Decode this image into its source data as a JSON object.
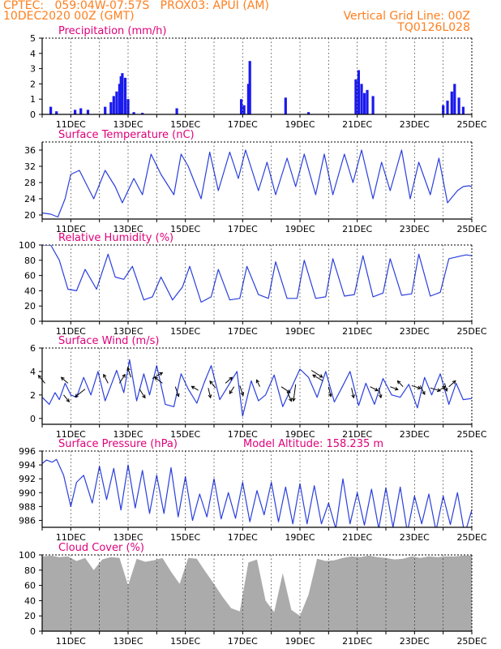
{
  "header": {
    "line1": "CPTEC:   059:04W-07:57S   PROX03: APUI (AM)",
    "line2": "10DEC2020 00Z (GMT)",
    "grid_note": "Vertical Grid Line: 00Z",
    "code": "TQ0126L028"
  },
  "x_tick_labels": [
    "11DEC",
    "13DEC",
    "15DEC",
    "17DEC",
    "19DEC",
    "21DEC",
    "23DEC",
    "25DEC"
  ],
  "colors": {
    "header": "#ff7f1e",
    "title": "#e0007a",
    "line": "#2a3fdd",
    "bar": "#1a1aee",
    "cloud": "#ababab",
    "grid": "#000000"
  },
  "chart_data": [
    {
      "type": "bar",
      "id": "precip",
      "title": "Precipitation (mm/h)",
      "ylim": [
        0,
        5
      ],
      "yticks": [
        0,
        1,
        2,
        3,
        4,
        5
      ],
      "x": [
        10.3,
        10.5,
        11.15,
        11.35,
        11.6,
        12.2,
        12.4,
        12.5,
        12.6,
        12.7,
        12.75,
        12.8,
        12.9,
        13.0,
        13.2,
        13.5,
        14.7,
        16.95,
        17.05,
        17.2,
        17.25,
        18.5,
        19.3,
        20.95,
        21.05,
        21.15,
        21.25,
        21.35,
        21.55,
        24.0,
        24.15,
        24.3,
        24.4,
        24.55,
        24.7
      ],
      "values": [
        0.5,
        0.2,
        0.3,
        0.4,
        0.3,
        0.5,
        0.8,
        1.2,
        1.5,
        2.0,
        2.5,
        2.7,
        2.4,
        1.0,
        0.15,
        0.1,
        0.4,
        1.0,
        0.6,
        2.0,
        3.5,
        1.1,
        0.15,
        2.3,
        2.9,
        2.0,
        1.4,
        1.6,
        1.2,
        0.6,
        0.9,
        1.5,
        2.0,
        1.1,
        0.5
      ]
    },
    {
      "type": "line",
      "id": "temp",
      "title": "Surface Temperature (nC)",
      "ylim": [
        19,
        38
      ],
      "yticks": [
        20,
        24,
        28,
        32,
        36
      ],
      "x": [
        10.0,
        10.3,
        10.55,
        10.8,
        11.0,
        11.3,
        11.8,
        12.2,
        12.55,
        12.8,
        13.2,
        13.5,
        13.8,
        14.15,
        14.6,
        14.85,
        15.1,
        15.55,
        15.85,
        16.15,
        16.55,
        16.85,
        17.1,
        17.55,
        17.85,
        18.15,
        18.55,
        18.85,
        19.15,
        19.55,
        19.85,
        20.15,
        20.55,
        20.85,
        21.15,
        21.55,
        21.85,
        22.15,
        22.55,
        22.85,
        23.15,
        23.55,
        23.85,
        24.15,
        24.5,
        24.7,
        24.9,
        25.0
      ],
      "y": [
        20.5,
        20.2,
        19.5,
        24,
        30,
        31,
        24,
        31,
        27,
        23,
        29,
        25,
        35,
        30,
        25,
        35,
        32,
        24,
        35.5,
        26,
        35.5,
        29,
        36,
        26,
        33,
        25,
        34,
        27,
        35,
        25,
        35,
        25,
        35,
        28,
        36,
        24,
        33,
        26,
        36,
        24,
        33,
        25,
        34,
        23,
        26,
        27,
        27.2,
        27
      ]
    },
    {
      "type": "line",
      "id": "rh",
      "title": "Relative Humidity (%)",
      "ylim": [
        0,
        100
      ],
      "yticks": [
        0,
        20,
        40,
        60,
        80,
        100
      ],
      "x": [
        10.0,
        10.3,
        10.6,
        10.9,
        11.2,
        11.5,
        11.9,
        12.3,
        12.55,
        12.85,
        13.15,
        13.55,
        13.85,
        14.15,
        14.55,
        14.9,
        15.15,
        15.55,
        15.9,
        16.15,
        16.55,
        16.9,
        17.15,
        17.55,
        17.9,
        18.15,
        18.55,
        18.9,
        19.15,
        19.55,
        19.9,
        20.15,
        20.55,
        20.9,
        21.2,
        21.55,
        21.9,
        22.15,
        22.55,
        22.9,
        23.15,
        23.55,
        23.9,
        24.2,
        24.55,
        24.8,
        25.0
      ],
      "y": [
        100,
        100,
        80,
        42,
        40,
        68,
        42,
        88,
        58,
        55,
        72,
        28,
        32,
        58,
        28,
        45,
        72,
        25,
        32,
        68,
        28,
        30,
        72,
        35,
        30,
        78,
        30,
        30,
        80,
        30,
        32,
        82,
        33,
        35,
        86,
        32,
        37,
        82,
        34,
        36,
        88,
        33,
        38,
        82,
        85,
        87,
        86
      ]
    },
    {
      "type": "line",
      "id": "wind",
      "title": "Surface Wind (m/s)",
      "ylim": [
        -0.5,
        6
      ],
      "yticks": [
        0,
        2,
        4,
        6
      ],
      "x": [
        10.0,
        10.25,
        10.45,
        10.6,
        10.8,
        11.0,
        11.2,
        11.45,
        11.7,
        11.95,
        12.2,
        12.4,
        12.6,
        12.85,
        13.05,
        13.3,
        13.55,
        13.75,
        14.0,
        14.3,
        14.6,
        14.85,
        15.1,
        15.4,
        15.65,
        15.9,
        16.2,
        16.5,
        16.8,
        17.0,
        17.3,
        17.55,
        17.8,
        18.1,
        18.4,
        18.7,
        19.0,
        19.3,
        19.6,
        19.9,
        20.2,
        20.5,
        20.75,
        21.05,
        21.3,
        21.6,
        21.9,
        22.2,
        22.5,
        22.8,
        23.1,
        23.35,
        23.6,
        23.9,
        24.2,
        24.45,
        24.7,
        25.0
      ],
      "y": [
        1.8,
        1.2,
        2.2,
        1.6,
        3.0,
        2.0,
        1.8,
        3.5,
        2.0,
        4.0,
        1.5,
        2.8,
        4.1,
        2.2,
        5.0,
        1.5,
        3.8,
        2.0,
        4.5,
        1.2,
        1.0,
        3.8,
        2.5,
        1.3,
        3.0,
        4.5,
        1.6,
        2.8,
        4.0,
        0.2,
        3.2,
        1.5,
        2.0,
        3.7,
        1.0,
        2.6,
        4.2,
        3.5,
        1.8,
        4.0,
        1.4,
        2.8,
        4.0,
        1.1,
        3.0,
        1.2,
        3.4,
        2.0,
        1.8,
        2.9,
        0.9,
        3.5,
        2.0,
        3.8,
        1.2,
        3.0,
        1.6,
        1.7
      ],
      "arrows": [
        [
          10.1,
          3.0,
          -0.3,
          0.4
        ],
        [
          10.75,
          2.0,
          0.25,
          -0.35
        ],
        [
          10.9,
          3.0,
          -0.3,
          0.3
        ],
        [
          11.5,
          2.5,
          -0.45,
          -0.4
        ],
        [
          12.3,
          3.0,
          -0.2,
          0.45
        ],
        [
          12.7,
          3.0,
          0.25,
          0.45
        ],
        [
          13.1,
          3.5,
          -0.15,
          0.5
        ],
        [
          13.4,
          2.5,
          0.25,
          -0.45
        ],
        [
          13.85,
          3.4,
          0.45,
          0.3
        ],
        [
          14.2,
          3.0,
          -0.35,
          0.3
        ],
        [
          14.65,
          2.7,
          0.15,
          -0.5
        ],
        [
          15.45,
          2.4,
          -0.3,
          0.2
        ],
        [
          15.8,
          2.6,
          0.1,
          -0.5
        ],
        [
          16.05,
          2.6,
          -0.25,
          0.35
        ],
        [
          16.4,
          3.0,
          0.3,
          0.3
        ],
        [
          16.7,
          2.7,
          -0.2,
          -0.35
        ],
        [
          16.9,
          2.8,
          0.15,
          -0.5
        ],
        [
          17.6,
          2.7,
          -0.15,
          0.35
        ],
        [
          18.35,
          2.7,
          0.4,
          -0.3
        ],
        [
          18.55,
          2.3,
          0.2,
          -0.5
        ],
        [
          18.85,
          2.9,
          -0.1,
          -0.85
        ],
        [
          19.4,
          4.1,
          0.5,
          -0.35
        ],
        [
          19.8,
          3.2,
          -0.45,
          0.3
        ],
        [
          20.0,
          2.7,
          0.1,
          -0.5
        ],
        [
          20.8,
          2.6,
          0.1,
          -0.5
        ],
        [
          21.45,
          2.7,
          0.35,
          -0.2
        ],
        [
          21.75,
          2.6,
          0.1,
          -0.5
        ],
        [
          22.15,
          2.7,
          0.35,
          -0.15
        ],
        [
          22.6,
          2.7,
          -0.25,
          0.3
        ],
        [
          22.9,
          2.8,
          0.4,
          -0.15
        ],
        [
          23.2,
          2.8,
          0.2,
          -0.45
        ],
        [
          23.55,
          2.6,
          0.45,
          -0.15
        ],
        [
          23.8,
          2.3,
          0.35,
          0.25
        ],
        [
          24.2,
          2.7,
          0.3,
          0.3
        ],
        [
          24.05,
          3.0,
          0.1,
          -0.4
        ]
      ]
    },
    {
      "type": "line",
      "id": "pres",
      "title": "Surface Pressure (hPa)",
      "annotation": "Model Altitude: 158.235 m",
      "ylim": [
        985,
        996
      ],
      "yticks": [
        986,
        988,
        990,
        992,
        994,
        996
      ],
      "x": [
        10.0,
        10.15,
        10.35,
        10.5,
        10.75,
        11.0,
        11.2,
        11.45,
        11.75,
        12.0,
        12.25,
        12.5,
        12.75,
        13.0,
        13.25,
        13.5,
        13.75,
        14.0,
        14.25,
        14.5,
        14.75,
        15.0,
        15.25,
        15.5,
        15.75,
        16.0,
        16.25,
        16.5,
        16.75,
        17.0,
        17.25,
        17.5,
        17.75,
        18.0,
        18.25,
        18.5,
        18.75,
        19.0,
        19.25,
        19.5,
        19.75,
        20.0,
        20.25,
        20.5,
        20.75,
        21.0,
        21.25,
        21.5,
        21.75,
        22.0,
        22.25,
        22.5,
        22.75,
        23.0,
        23.25,
        23.5,
        23.75,
        24.0,
        24.25,
        24.5,
        24.75,
        25.0
      ],
      "y": [
        994.2,
        994.7,
        994.4,
        994.8,
        992.5,
        988.0,
        991.5,
        992.5,
        988.5,
        993.8,
        989.0,
        993.5,
        987.5,
        994.0,
        987.8,
        993.2,
        987.0,
        992.5,
        987.0,
        993.6,
        986.5,
        992.3,
        986.0,
        989.8,
        986.5,
        992.0,
        986.2,
        990.0,
        986.3,
        991.5,
        985.8,
        990.3,
        986.8,
        991.5,
        985.8,
        990.8,
        985.5,
        991.3,
        985.5,
        991.0,
        985.5,
        988.5,
        984.8,
        992.0,
        985.5,
        990.0,
        985.3,
        990.5,
        984.8,
        990.7,
        985.0,
        990.8,
        984.3,
        989.5,
        985.5,
        989.8,
        984.5,
        989.5,
        985.4,
        990.0,
        984.0,
        987.5
      ]
    },
    {
      "type": "area",
      "id": "cloud",
      "title": "Cloud Cover (%)",
      "ylim": [
        0,
        100
      ],
      "yticks": [
        0,
        20,
        40,
        60,
        80,
        100
      ],
      "x": [
        10.0,
        10.3,
        10.6,
        10.9,
        11.2,
        11.5,
        11.8,
        12.1,
        12.4,
        12.7,
        13.0,
        13.3,
        13.6,
        13.9,
        14.2,
        14.5,
        14.8,
        15.1,
        15.4,
        15.7,
        16.0,
        16.3,
        16.6,
        16.9,
        17.2,
        17.5,
        17.8,
        18.1,
        18.4,
        18.7,
        19.0,
        19.3,
        19.6,
        19.9,
        20.2,
        20.5,
        20.8,
        21.1,
        21.4,
        21.7,
        22.0,
        22.3,
        22.6,
        22.9,
        23.2,
        23.5,
        23.8,
        24.1,
        24.4,
        24.7,
        25.0
      ],
      "y": [
        98,
        99,
        97,
        98,
        92,
        96,
        80,
        94,
        97,
        96,
        60,
        95,
        91,
        93,
        96,
        78,
        62,
        96,
        95,
        78,
        62,
        45,
        30,
        26,
        90,
        94,
        40,
        25,
        76,
        28,
        20,
        48,
        95,
        92,
        93,
        96,
        98,
        97,
        99,
        97,
        96,
        94,
        95,
        98,
        96,
        98,
        97,
        98,
        98,
        99,
        99
      ]
    }
  ]
}
